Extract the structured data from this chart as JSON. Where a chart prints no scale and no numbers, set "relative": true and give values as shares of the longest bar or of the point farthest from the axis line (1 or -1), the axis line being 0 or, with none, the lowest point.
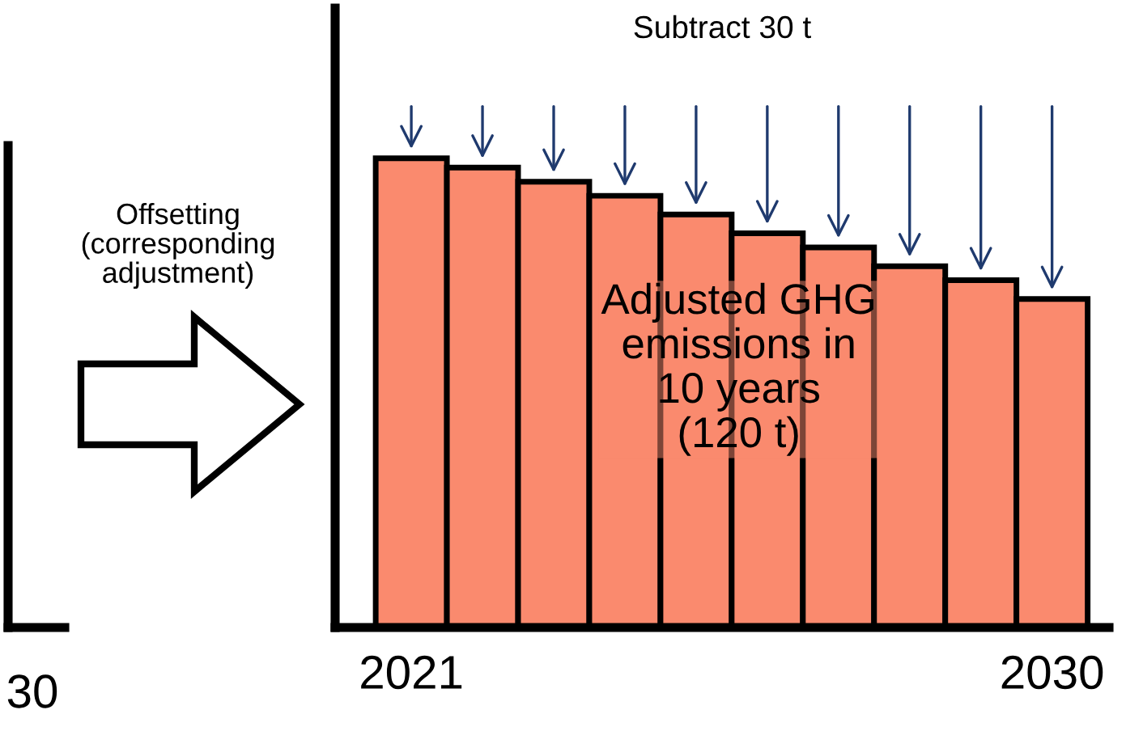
{
  "chart_data": {
    "type": "bar",
    "relative": true,
    "categories": [
      "2021",
      null,
      null,
      null,
      null,
      null,
      null,
      null,
      null,
      "2030"
    ],
    "values": [
      1,
      0.98,
      0.95,
      0.92,
      0.88,
      0.84,
      0.81,
      0.77,
      0.74,
      0.7
    ],
    "color": "#fa8a6e",
    "title": "Subtract 30 t",
    "annotations": [
      "Adjusted GHG\nemissions in\n10 years\n(120 t)",
      "Offsetting\n(corresponding\nadjustment)",
      "30"
    ],
    "grid": false,
    "legend": false
  }
}
